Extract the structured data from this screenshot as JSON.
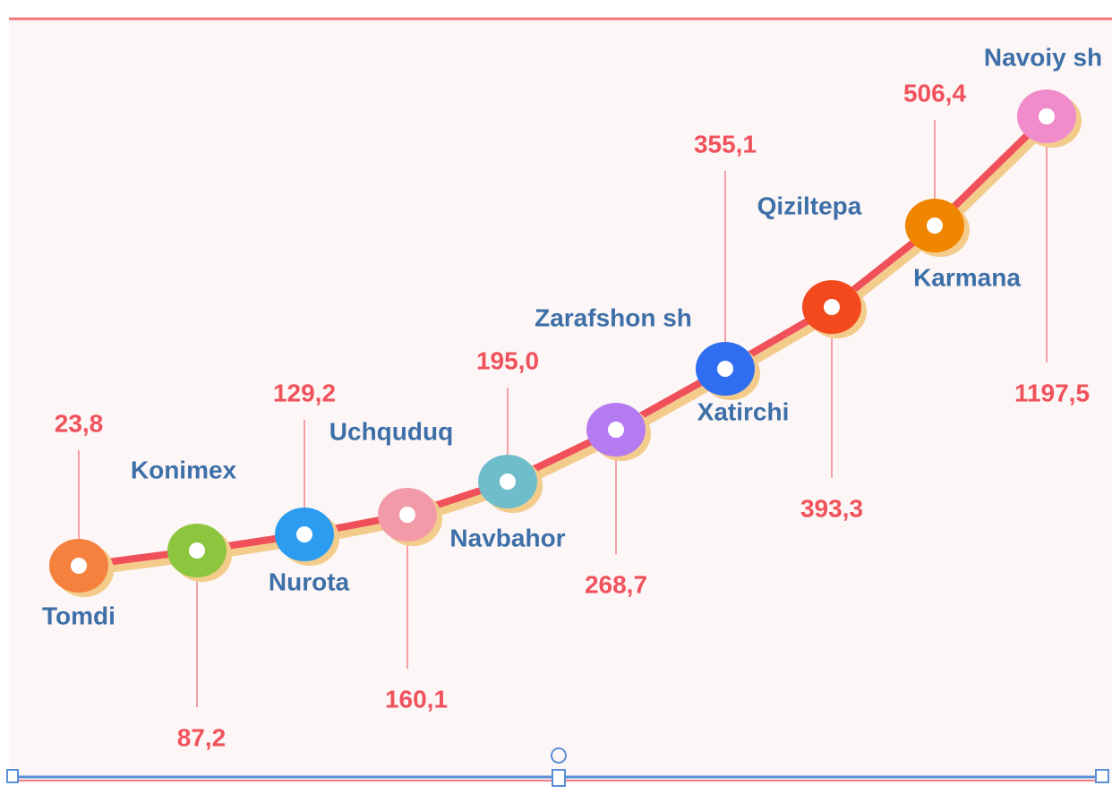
{
  "points": [
    {
      "label": "Tomdi",
      "value": "23,8"
    },
    {
      "label": "Konimex",
      "value": "87,2"
    },
    {
      "label": "Nurota",
      "value": "129,2"
    },
    {
      "label": "Uchquduq",
      "value": "160,1"
    },
    {
      "label": "Navbahor",
      "value": "195,0"
    },
    {
      "label": "Zarafshon sh",
      "value": "268,7"
    },
    {
      "label": "Xatirchi",
      "value": "355,1"
    },
    {
      "label": "Qiziltepa",
      "value": "393,3"
    },
    {
      "label": "Karmana",
      "value": "506,4"
    },
    {
      "label": "Navoiy sh",
      "value": "1197,5"
    }
  ]
}
